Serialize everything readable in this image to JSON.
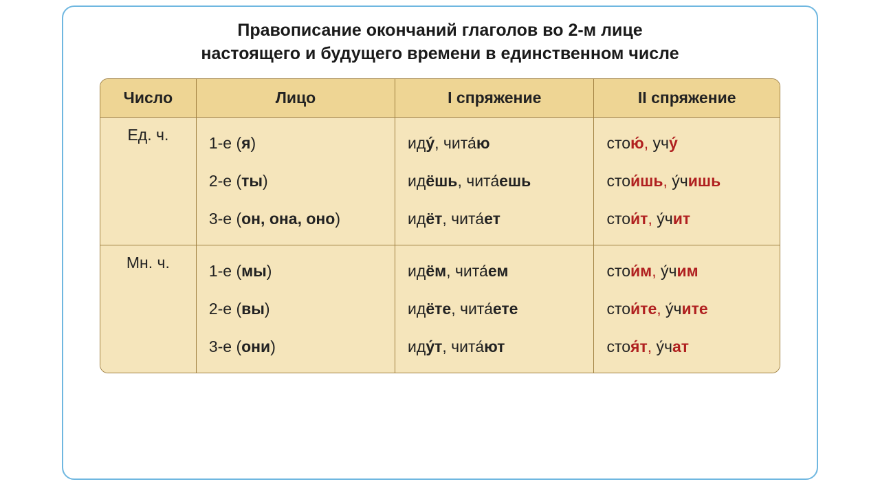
{
  "title_line1": "Правописание окончаний глаголов во 2-м лице",
  "title_line2": "настоящего и будущего времени в единственном числе",
  "headers": {
    "c1": "Число",
    "c2": "Лицо",
    "c3": "I спряжение",
    "c4": "II спряжение"
  },
  "groups": [
    {
      "num": "Ед. ч.",
      "rows": [
        {
          "person_pre": "1-е (",
          "person_bold": "я",
          "person_post": ")",
          "c3": [
            {
              "t": "ид",
              "c": ""
            },
            {
              "t": "у́",
              "c": "bold"
            },
            {
              "t": ", чита́",
              "c": ""
            },
            {
              "t": "ю",
              "c": "bold"
            }
          ],
          "c4": [
            {
              "t": "сто",
              "c": ""
            },
            {
              "t": "ю́",
              "c": "redb"
            },
            {
              "t": ",",
              "c": "red"
            },
            {
              "t": " уч",
              "c": ""
            },
            {
              "t": "у́",
              "c": "redb"
            }
          ]
        },
        {
          "person_pre": "2-е (",
          "person_bold": "ты",
          "person_post": ")",
          "c3": [
            {
              "t": "ид",
              "c": ""
            },
            {
              "t": "ёшь",
              "c": "bold"
            },
            {
              "t": ", чита́",
              "c": ""
            },
            {
              "t": "ешь",
              "c": "bold"
            }
          ],
          "c4": [
            {
              "t": "сто",
              "c": ""
            },
            {
              "t": "и́шь",
              "c": "redb"
            },
            {
              "t": ",",
              "c": "red"
            },
            {
              "t": " у́ч",
              "c": ""
            },
            {
              "t": "ишь",
              "c": "redb"
            }
          ]
        },
        {
          "person_pre": "3-е (",
          "person_bold": "он, она, оно",
          "person_post": ")",
          "c3": [
            {
              "t": "ид",
              "c": ""
            },
            {
              "t": "ёт",
              "c": "bold"
            },
            {
              "t": ", чита́",
              "c": ""
            },
            {
              "t": "ет",
              "c": "bold"
            }
          ],
          "c4": [
            {
              "t": "сто",
              "c": ""
            },
            {
              "t": "и́т",
              "c": "redb"
            },
            {
              "t": ",",
              "c": "red"
            },
            {
              "t": " у́ч",
              "c": ""
            },
            {
              "t": "ит",
              "c": "redb"
            }
          ]
        }
      ]
    },
    {
      "num": "Мн. ч.",
      "rows": [
        {
          "person_pre": "1-е (",
          "person_bold": "мы",
          "person_post": ")",
          "c3": [
            {
              "t": "ид",
              "c": ""
            },
            {
              "t": "ём",
              "c": "bold"
            },
            {
              "t": ", чита́",
              "c": ""
            },
            {
              "t": "ем",
              "c": "bold"
            }
          ],
          "c4": [
            {
              "t": "сто",
              "c": ""
            },
            {
              "t": "и́м",
              "c": "redb"
            },
            {
              "t": ",",
              "c": "red"
            },
            {
              "t": " у́ч",
              "c": ""
            },
            {
              "t": "им",
              "c": "redb"
            }
          ]
        },
        {
          "person_pre": "2-е (",
          "person_bold": "вы",
          "person_post": ")",
          "c3": [
            {
              "t": "ид",
              "c": ""
            },
            {
              "t": "ёте",
              "c": "bold"
            },
            {
              "t": ", чита́",
              "c": ""
            },
            {
              "t": "ете",
              "c": "bold"
            }
          ],
          "c4": [
            {
              "t": "сто",
              "c": ""
            },
            {
              "t": "и́те",
              "c": "redb"
            },
            {
              "t": ",",
              "c": "red"
            },
            {
              "t": " у́ч",
              "c": ""
            },
            {
              "t": "ите",
              "c": "redb"
            }
          ]
        },
        {
          "person_pre": "3-е (",
          "person_bold": "они",
          "person_post": ")",
          "c3": [
            {
              "t": "ид",
              "c": ""
            },
            {
              "t": "у́т",
              "c": "bold"
            },
            {
              "t": ", чита́",
              "c": ""
            },
            {
              "t": "ют",
              "c": "bold"
            }
          ],
          "c4": [
            {
              "t": "сто",
              "c": ""
            },
            {
              "t": "я́т",
              "c": "redb"
            },
            {
              "t": ",",
              "c": "red"
            },
            {
              "t": " у́ч",
              "c": ""
            },
            {
              "t": "ат",
              "c": "redb"
            }
          ]
        }
      ]
    }
  ],
  "theme": {
    "frame_border": "#6fb7e0",
    "table_border": "#a08040",
    "header_bg": "#eed594",
    "cell_bg": "#f5e5bb",
    "text": "#1a1a1a",
    "red": "#b02020"
  }
}
